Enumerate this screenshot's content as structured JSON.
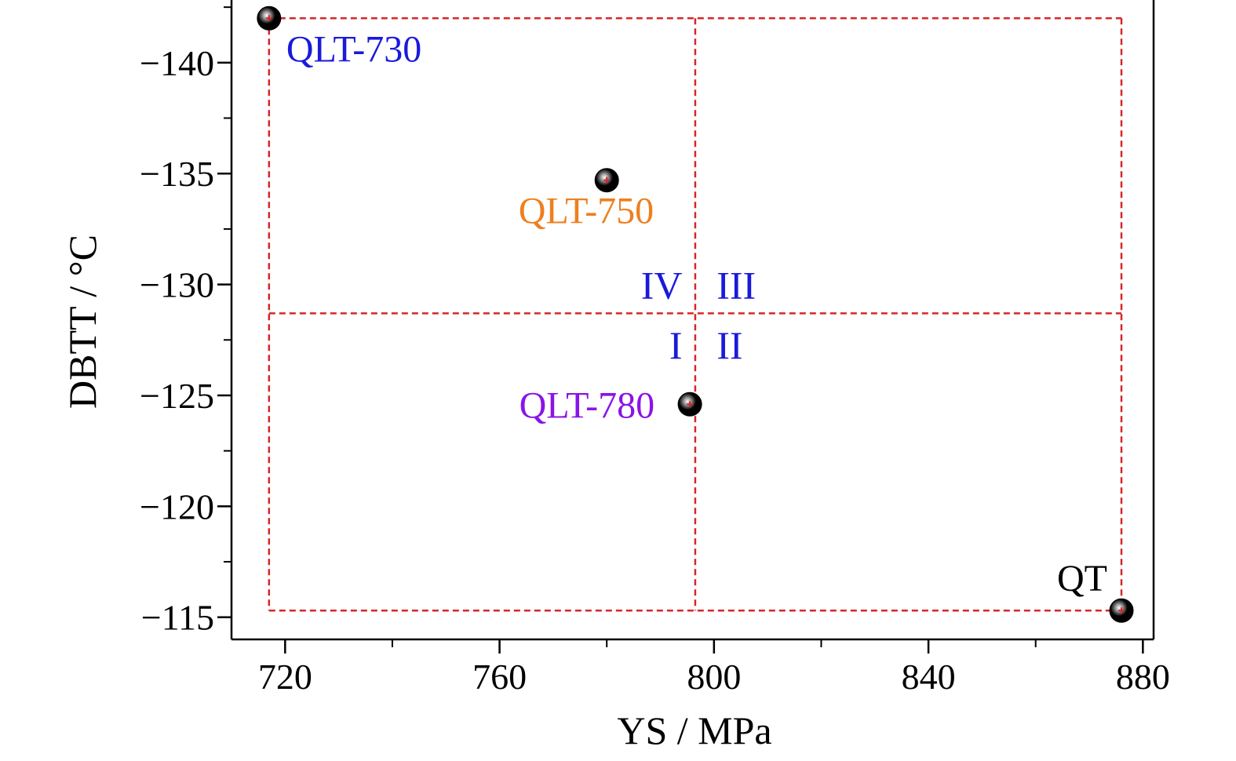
{
  "chart_data": {
    "type": "scatter",
    "title": "",
    "xlabel": "YS / MPa",
    "ylabel": "DBTT / °C",
    "xlim": [
      710,
      882
    ],
    "ylim": [
      -143,
      -114
    ],
    "y_inverted": true,
    "grid": false,
    "x_ticks": [
      {
        "value": 720,
        "label": "720"
      },
      {
        "value": 760,
        "label": "760"
      },
      {
        "value": 800,
        "label": "800"
      },
      {
        "value": 840,
        "label": "840"
      },
      {
        "value": 880,
        "label": "880"
      }
    ],
    "y_ticks": [
      {
        "value": -140,
        "label": "−140"
      },
      {
        "value": -135,
        "label": "−135"
      },
      {
        "value": -130,
        "label": "−130"
      },
      {
        "value": -125,
        "label": "−125"
      },
      {
        "value": -120,
        "label": "−120"
      },
      {
        "value": -115,
        "label": "−115"
      }
    ],
    "points": [
      {
        "label": "QLT-730",
        "x": 717,
        "y": -142,
        "label_color": "#1a1adb"
      },
      {
        "label": "QLT-750",
        "x": 780,
        "y": -134.7,
        "label_color": "#ee7f1e"
      },
      {
        "label": "QLT-780",
        "x": 795.5,
        "y": -124.6,
        "label_color": "#8a14e6"
      },
      {
        "label": "QT",
        "x": 876,
        "y": -115.3,
        "label_color": "#000000"
      }
    ],
    "guide_lines": {
      "color": "#d62728",
      "x_left": 717,
      "x_mid": 796.5,
      "x_right": 876,
      "y_top": -142,
      "y_mid": -128.7,
      "y_bottom": -115.3
    },
    "quadrants": [
      {
        "label": "IV",
        "x": 790,
        "y": -130,
        "color": "#1a1adb"
      },
      {
        "label": "III",
        "x": 800.5,
        "y": -130,
        "color": "#1a1adb"
      },
      {
        "label": "I",
        "x": 790,
        "y": -127.3,
        "color": "#1a1adb"
      },
      {
        "label": "II",
        "x": 800.5,
        "y": -127.3,
        "color": "#1a1adb"
      }
    ]
  }
}
